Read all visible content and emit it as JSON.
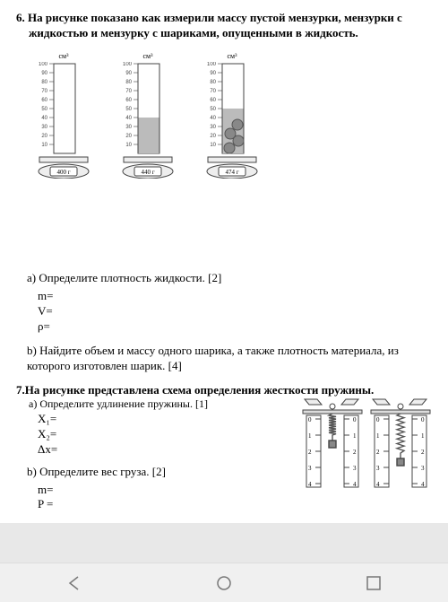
{
  "problem6": {
    "title": "6.  На рисунке показано как измерили массу пустой мензурки, мензурки с жидкостью и мензурку с шариками, опущенными в жидкость.",
    "unit": "см³",
    "scale_max": 100,
    "scale_step": 10,
    "cylinders": [
      {
        "liquid_level": 0,
        "scale_display": "400 г",
        "balls": 0
      },
      {
        "liquid_level": 40,
        "scale_display": "440 г",
        "balls": 0
      },
      {
        "liquid_level": 50,
        "scale_display": "474 г",
        "balls": 4
      }
    ],
    "qa_label": "a) Определите плотность жидкости. [2]",
    "qa_m": "m=",
    "qa_v": "V=",
    "qa_rho": "ρ=",
    "qb": "b) Найдите объем и массу одного шарика, а также плотность материала, из которого изготовлен шарик. [4]",
    "colors": {
      "outline": "#444",
      "liquid": "#bbb",
      "ball": "#888",
      "ball_stroke": "#555",
      "scale_body": "#eee",
      "scale_display_bg": "#fff"
    }
  },
  "problem7": {
    "title": "7.На рисунке представлена схема определения жесткости пружины.",
    "qa_label": "a) Определите удлинение пружины. [1]",
    "x1": "X₁=",
    "x2": "X₂=",
    "dx": "Δx=",
    "qb_label": "b) Определите вес груза. [2]",
    "m": "m=",
    "p": "P =",
    "ruler_ticks": [
      "0",
      "1",
      "2",
      "3",
      "4"
    ],
    "spring1_len": 22,
    "spring2_len": 42,
    "colors": {
      "outline": "#444",
      "spring": "#555",
      "ruler_bg": "#fff",
      "top_ring": "#666"
    }
  },
  "nav": {
    "back_color": "#777",
    "home_color": "#777",
    "recent_color": "#777"
  }
}
